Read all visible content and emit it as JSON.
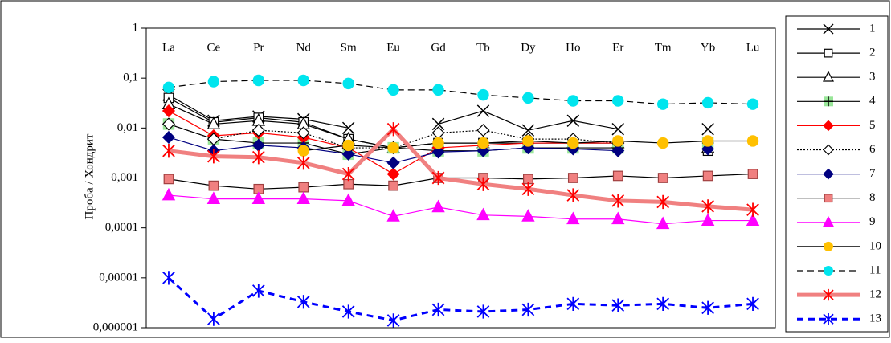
{
  "chart_data": {
    "type": "line",
    "log_y": true,
    "y_label": "Проба / Хондрит",
    "categories": [
      "La",
      "Ce",
      "Pr",
      "Nd",
      "Sm",
      "Eu",
      "Gd",
      "Tb",
      "Dy",
      "Ho",
      "Er",
      "Tm",
      "Yb",
      "Lu"
    ],
    "ylim": [
      1e-06,
      1
    ],
    "yticks": [
      {
        "value": 1e-06,
        "label": "0,000001"
      },
      {
        "value": 1e-05,
        "label": "0,00001"
      },
      {
        "value": 0.0001,
        "label": "0,0001"
      },
      {
        "value": 0.001,
        "label": "0,001"
      },
      {
        "value": 0.01,
        "label": "0,01"
      },
      {
        "value": 0.1,
        "label": "0,1"
      },
      1
    ],
    "series": [
      {
        "name": "1",
        "color": "#000000",
        "marker": "x",
        "marker_color": "#000000",
        "values": [
          0.046,
          0.014,
          0.017,
          0.015,
          0.01,
          null,
          0.012,
          0.022,
          0.009,
          0.014,
          0.0095,
          null,
          0.0095,
          null
        ]
      },
      {
        "name": "2",
        "color": "#000000",
        "marker": "square-open",
        "marker_color": "#000000",
        "values": [
          0.04,
          0.013,
          0.016,
          0.013,
          0.006,
          0.004,
          0.005,
          0.005,
          0.005,
          0.005,
          0.005,
          null,
          0.0035,
          null
        ]
      },
      {
        "name": "3",
        "color": "#000000",
        "marker": "triangle-open",
        "marker_color": "#000000",
        "values": [
          0.03,
          0.012,
          0.014,
          0.012,
          0.006,
          0.004,
          0.005,
          0.005,
          0.005,
          0.005,
          0.005,
          null,
          0.004,
          null
        ]
      },
      {
        "name": "4",
        "color": "#000000",
        "marker": "plus",
        "marker_color": "#99e699",
        "values": [
          0.012,
          0.006,
          0.005,
          0.005,
          0.003,
          0.004,
          0.0035,
          0.0035,
          0.004,
          0.004,
          0.004,
          null,
          0.005,
          null
        ]
      },
      {
        "name": "5",
        "color": "#ff0000",
        "marker": "diamond",
        "marker_color": "#ff0000",
        "values": [
          0.022,
          0.007,
          0.008,
          0.0065,
          0.004,
          0.0012,
          0.004,
          0.0045,
          0.005,
          0.005,
          0.005,
          null,
          null,
          null
        ]
      },
      {
        "name": "6",
        "color": "#000000",
        "dash": "2,2",
        "marker": "diamond-open",
        "marker_color": "#000000",
        "values": [
          0.012,
          0.006,
          0.009,
          0.008,
          0.004,
          0.004,
          0.008,
          0.009,
          0.006,
          0.006,
          0.005,
          null,
          null,
          null
        ]
      },
      {
        "name": "7",
        "color": "#000080",
        "marker": "diamond",
        "marker_color": "#000080",
        "values": [
          0.0065,
          0.0035,
          0.0045,
          0.004,
          0.003,
          0.002,
          0.0033,
          0.0035,
          0.004,
          0.0038,
          0.0035,
          null,
          0.0038,
          null
        ]
      },
      {
        "name": "8",
        "color": "#000000",
        "marker": "square",
        "marker_color": "#f08080",
        "values": [
          0.00095,
          0.0007,
          0.0006,
          0.00065,
          0.00075,
          0.0007,
          0.001,
          0.001,
          0.00095,
          0.001,
          0.0011,
          0.001,
          0.0011,
          0.0012
        ]
      },
      {
        "name": "9",
        "color": "#ff00ff",
        "marker": "triangle",
        "marker_color": "#ff00ff",
        "values": [
          0.00045,
          0.00038,
          0.00038,
          0.00038,
          0.00035,
          0.00017,
          0.00026,
          0.00018,
          0.00017,
          0.00015,
          0.00015,
          0.00012,
          0.00014,
          0.00014
        ]
      },
      {
        "name": "10",
        "color": "#000000",
        "marker": "circle",
        "marker_color": "#ffc000",
        "values": [
          null,
          null,
          null,
          0.0035,
          0.0045,
          0.004,
          0.005,
          0.005,
          0.0055,
          0.005,
          0.0055,
          0.005,
          0.0055,
          0.0055
        ]
      },
      {
        "name": "11",
        "color": "#000000",
        "dash": "8,5",
        "marker": "circle",
        "marker_color": "#00e5ee",
        "values": [
          0.065,
          0.085,
          0.09,
          0.09,
          0.078,
          0.058,
          0.058,
          0.046,
          0.04,
          0.035,
          0.035,
          0.03,
          0.032,
          0.03
        ]
      },
      {
        "name": "12",
        "color": "#f08080",
        "width": 5,
        "marker": "asterisk",
        "marker_color": "#ff0000",
        "values": [
          0.0035,
          0.0027,
          0.0026,
          0.002,
          0.0012,
          0.0095,
          0.001,
          0.00075,
          0.0006,
          0.00045,
          0.00035,
          0.00033,
          0.00027,
          0.00023
        ]
      },
      {
        "name": "13",
        "color": "#0000ff",
        "width": 3,
        "dash": "8,6",
        "marker": "asterisk",
        "marker_color": "#0000ff",
        "values": [
          1e-05,
          1.5e-06,
          5.5e-06,
          3.3e-06,
          2.1e-06,
          1.4e-06,
          2.3e-06,
          2.1e-06,
          2.3e-06,
          3e-06,
          2.8e-06,
          3e-06,
          2.5e-06,
          3e-06
        ]
      }
    ]
  }
}
